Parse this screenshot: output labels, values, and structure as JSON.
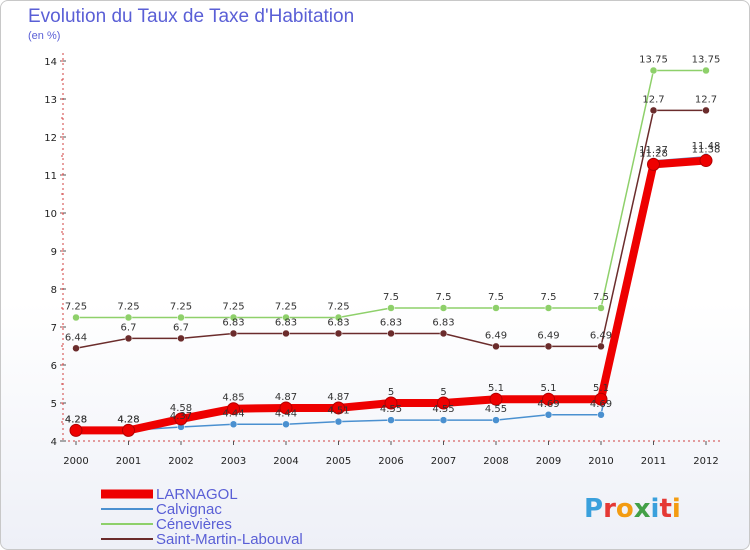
{
  "header": {
    "title": "Evolution du Taux de Taxe d'Habitation",
    "subtitle": "(en %)"
  },
  "logo": {
    "letters": [
      "P",
      "r",
      "o",
      "x",
      "i",
      "t",
      "i"
    ],
    "colors": [
      "#3aa0dc",
      "#e53935",
      "#f39c12",
      "#43a047",
      "#3aa0dc",
      "#e53935",
      "#f39c12"
    ]
  },
  "chart_data": {
    "type": "line",
    "title": "Evolution du Taux de Taxe d'Habitation",
    "ylabel": "(en %)",
    "xlabel": "",
    "ylim": [
      4,
      14
    ],
    "yticks": [
      4,
      5,
      6,
      7,
      8,
      9,
      10,
      11,
      12,
      13,
      14
    ],
    "grid": false,
    "legend_position": "bottom-left",
    "categories": [
      "2000",
      "2001",
      "2002",
      "2003",
      "2004",
      "2005",
      "2006",
      "2007",
      "2008",
      "2009",
      "2010",
      "2011",
      "2012"
    ],
    "series": [
      {
        "name": "Cénevières",
        "color": "#8ed06a",
        "values": [
          7.25,
          7.25,
          7.25,
          7.25,
          7.25,
          7.25,
          7.5,
          7.5,
          7.5,
          7.5,
          7.5,
          13.75,
          13.75
        ],
        "labels": [
          "7.25",
          "7.25",
          "7.25",
          "7.25",
          "7.25",
          "7.25",
          "7.5",
          "7.5",
          "7.5",
          "7.5",
          "7.5",
          "13.75",
          "13.75"
        ]
      },
      {
        "name": "Saint-Martin-Labouval",
        "color": "#6b2c2c",
        "values": [
          6.44,
          6.7,
          6.7,
          6.83,
          6.83,
          6.83,
          6.83,
          6.83,
          6.49,
          6.49,
          6.49,
          12.7,
          12.7
        ],
        "labels": [
          "6.44",
          "6.7",
          "6.7",
          "6.83",
          "6.83",
          "6.83",
          "6.83",
          "6.83",
          "6.49",
          "6.49",
          "6.49",
          "12.7",
          "12.7"
        ]
      },
      {
        "name": "Calvignac",
        "color": "#4a90d0",
        "values": [
          4.28,
          4.28,
          4.37,
          4.44,
          4.44,
          4.51,
          4.55,
          4.55,
          4.55,
          4.69,
          4.69,
          11.37,
          11.48
        ],
        "labels": [
          "4.28",
          "4.28",
          "4.37",
          "4.44",
          "4.44",
          "4.51",
          "4.55",
          "4.55",
          "4.55",
          "4.69",
          "4.69",
          "11.37",
          "11.48"
        ]
      },
      {
        "name": "LARNAGOL",
        "color": "#ee0000",
        "values": [
          4.28,
          4.28,
          4.58,
          4.85,
          4.87,
          4.87,
          5,
          5,
          5.1,
          5.1,
          5.1,
          11.28,
          11.38
        ],
        "labels": [
          "4.28",
          "4.28",
          "4.58",
          "4.85",
          "4.87",
          "4.87",
          "5",
          "5",
          "5.1",
          "5.1",
          "5.1",
          "11.28",
          "11.38"
        ]
      }
    ],
    "legend": [
      "LARNAGOL",
      "Calvignac",
      "Cénevières",
      "Saint-Martin-Labouval"
    ]
  }
}
